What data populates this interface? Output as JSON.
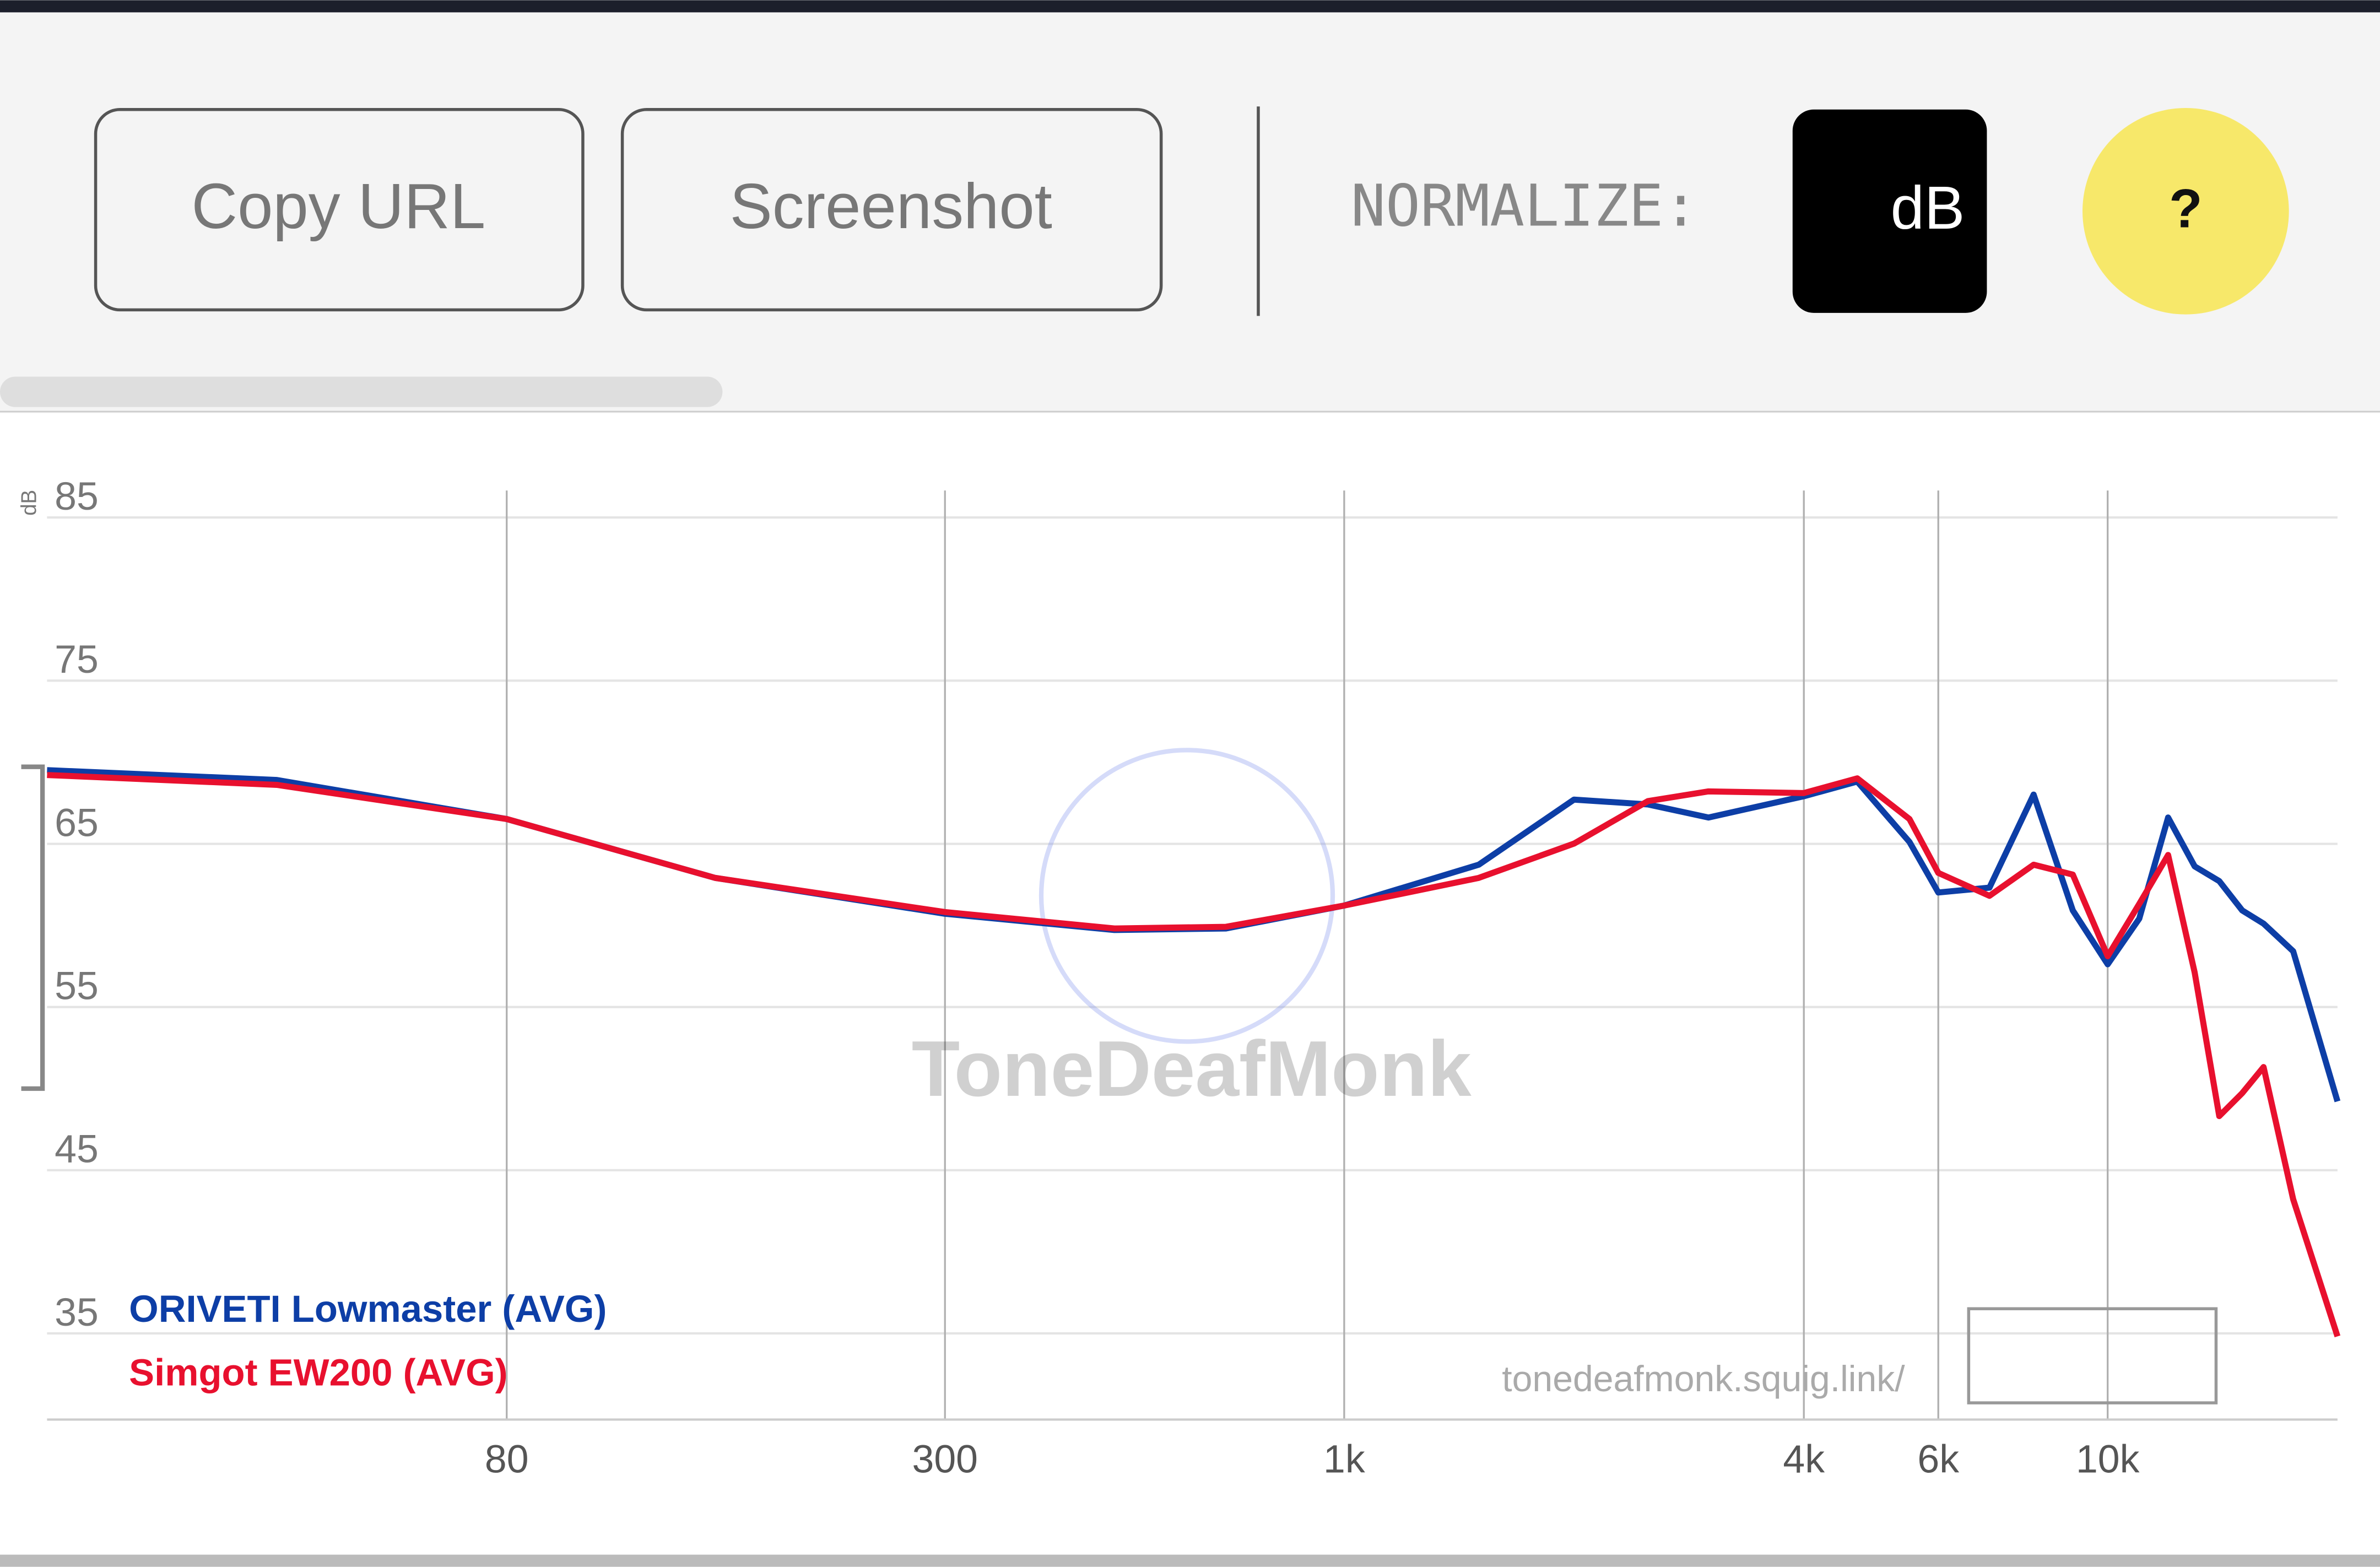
{
  "toolbar": {
    "copy_button": "Copy URL",
    "screenshot_button": "Screenshot",
    "normalize_label": "NORMALIZE:",
    "normalize_unit": "dB",
    "help_button": "?"
  },
  "chart_data": {
    "type": "line",
    "y_label": "dB",
    "xscale": "log",
    "grid": true,
    "watermark": "ToneDeafMonk",
    "site_url": "tonedeafmonk.squig.link/",
    "x": [
      20,
      40,
      80,
      150,
      300,
      500,
      700,
      1000,
      1500,
      2000,
      2500,
      3000,
      4000,
      4700,
      5500,
      6000,
      7000,
      8000,
      9000,
      10000,
      11000,
      12000,
      13000,
      14000,
      15000,
      16000,
      17500,
      20000
    ],
    "series": [
      {
        "name": "ORIVETI Lowmaster (AVG)",
        "color": "#0d3ea6",
        "values": [
          68.4,
          67.8,
          65.4,
          61.8,
          59.6,
          58.6,
          58.7,
          60.1,
          62.6,
          66.6,
          66.3,
          65.5,
          66.8,
          67.7,
          64.0,
          60.9,
          61.2,
          66.9,
          59.8,
          56.5,
          59.3,
          65.5,
          62.5,
          61.6,
          59.8,
          59.0,
          57.3,
          48.1
        ]
      },
      {
        "name": "Simgot EW200 (AVG)",
        "color": "#e8102e",
        "values": [
          68.1,
          67.5,
          65.4,
          61.8,
          59.7,
          58.7,
          58.8,
          60.1,
          61.8,
          63.9,
          66.5,
          67.1,
          67.0,
          67.9,
          65.4,
          62.1,
          60.7,
          62.6,
          62.0,
          57.0,
          60.2,
          63.2,
          56.0,
          47.2,
          48.6,
          50.2,
          42.1,
          33.7
        ]
      }
    ],
    "xlim": [
      20,
      20000
    ],
    "ylim": [
      30,
      86
    ],
    "xticks": [
      80,
      300,
      {
        "value": 1000,
        "label": "1k"
      },
      {
        "value": 4000,
        "label": "4k"
      },
      {
        "value": 6000,
        "label": "6k"
      },
      {
        "value": 10000,
        "label": "10k"
      }
    ],
    "yticks": [
      35,
      45,
      55,
      65,
      75,
      85
    ]
  }
}
